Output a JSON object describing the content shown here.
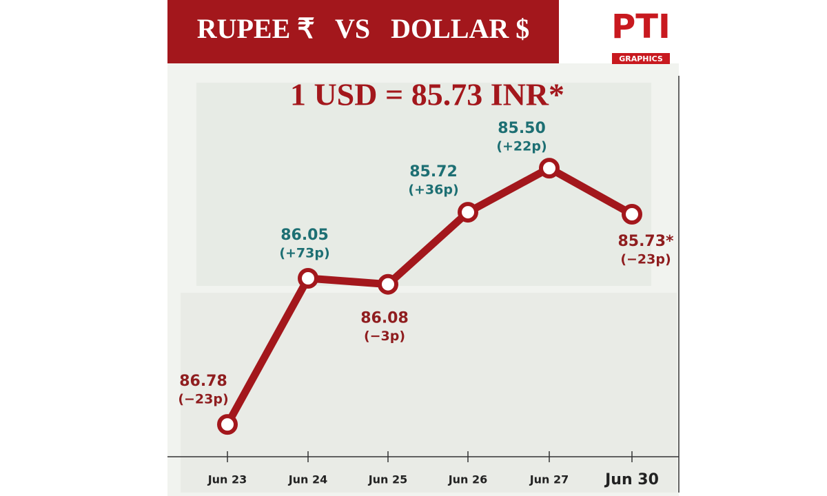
{
  "chart_data": {
    "type": "line",
    "title": "RUPEE ₹   VS   DOLLAR $",
    "subtitle": "1 USD = 85.73 INR*",
    "logo": {
      "text": "PTI",
      "subtext": "GRAPHICS"
    },
    "categories": [
      "Jun 23",
      "Jun 24",
      "Jun 25",
      "Jun 26",
      "Jun 27",
      "Jun 30"
    ],
    "values": [
      86.78,
      86.05,
      86.08,
      85.72,
      85.5,
      85.73
    ],
    "value_labels": [
      "86.78",
      "86.05",
      "86.08",
      "85.72",
      "85.50",
      "85.73*"
    ],
    "change_labels": [
      "(−23p)",
      "(+73p)",
      "(−3p)",
      "(+36p)",
      "(+22p)",
      "(−23p)"
    ],
    "label_colors": [
      "#8f1d1f",
      "#1d6f73",
      "#8f1d1f",
      "#1d6f73",
      "#1d6f73",
      "#8f1d1f"
    ],
    "color": "#a3171c",
    "ylim": [
      86.9,
      85.3
    ],
    "inverted": true
  }
}
